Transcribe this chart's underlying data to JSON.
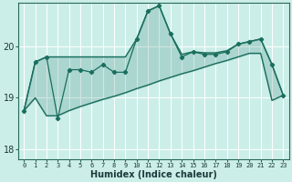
{
  "xlabel": "Humidex (Indice chaleur)",
  "background_color": "#cceee8",
  "grid_color": "#ffffff",
  "line_color": "#1a6e5e",
  "xlim": [
    -0.5,
    23.5
  ],
  "ylim": [
    17.8,
    20.85
  ],
  "yticks": [
    18,
    19,
    20
  ],
  "xticks": [
    0,
    1,
    2,
    3,
    4,
    5,
    6,
    7,
    8,
    9,
    10,
    11,
    12,
    13,
    14,
    15,
    16,
    17,
    18,
    19,
    20,
    21,
    22,
    23
  ],
  "jagged_y": [
    18.75,
    19.7,
    19.8,
    18.6,
    19.55,
    19.55,
    19.5,
    19.65,
    19.5,
    19.5,
    20.15,
    20.7,
    20.8,
    20.25,
    19.8,
    19.9,
    19.85,
    19.85,
    19.9,
    20.05,
    20.1,
    20.15,
    19.65,
    19.05
  ],
  "upper_env_y": [
    18.75,
    19.7,
    19.8,
    19.8,
    19.8,
    19.8,
    19.8,
    19.8,
    19.8,
    19.8,
    20.15,
    20.7,
    20.8,
    20.25,
    19.85,
    19.9,
    19.88,
    19.88,
    19.92,
    20.05,
    20.1,
    20.15,
    19.65,
    19.05
  ],
  "lower_env_y": [
    18.75,
    19.0,
    18.65,
    18.65,
    18.75,
    18.83,
    18.9,
    18.97,
    19.03,
    19.1,
    19.18,
    19.25,
    19.33,
    19.4,
    19.47,
    19.53,
    19.6,
    19.67,
    19.73,
    19.8,
    19.87,
    19.87,
    18.95,
    19.05
  ]
}
